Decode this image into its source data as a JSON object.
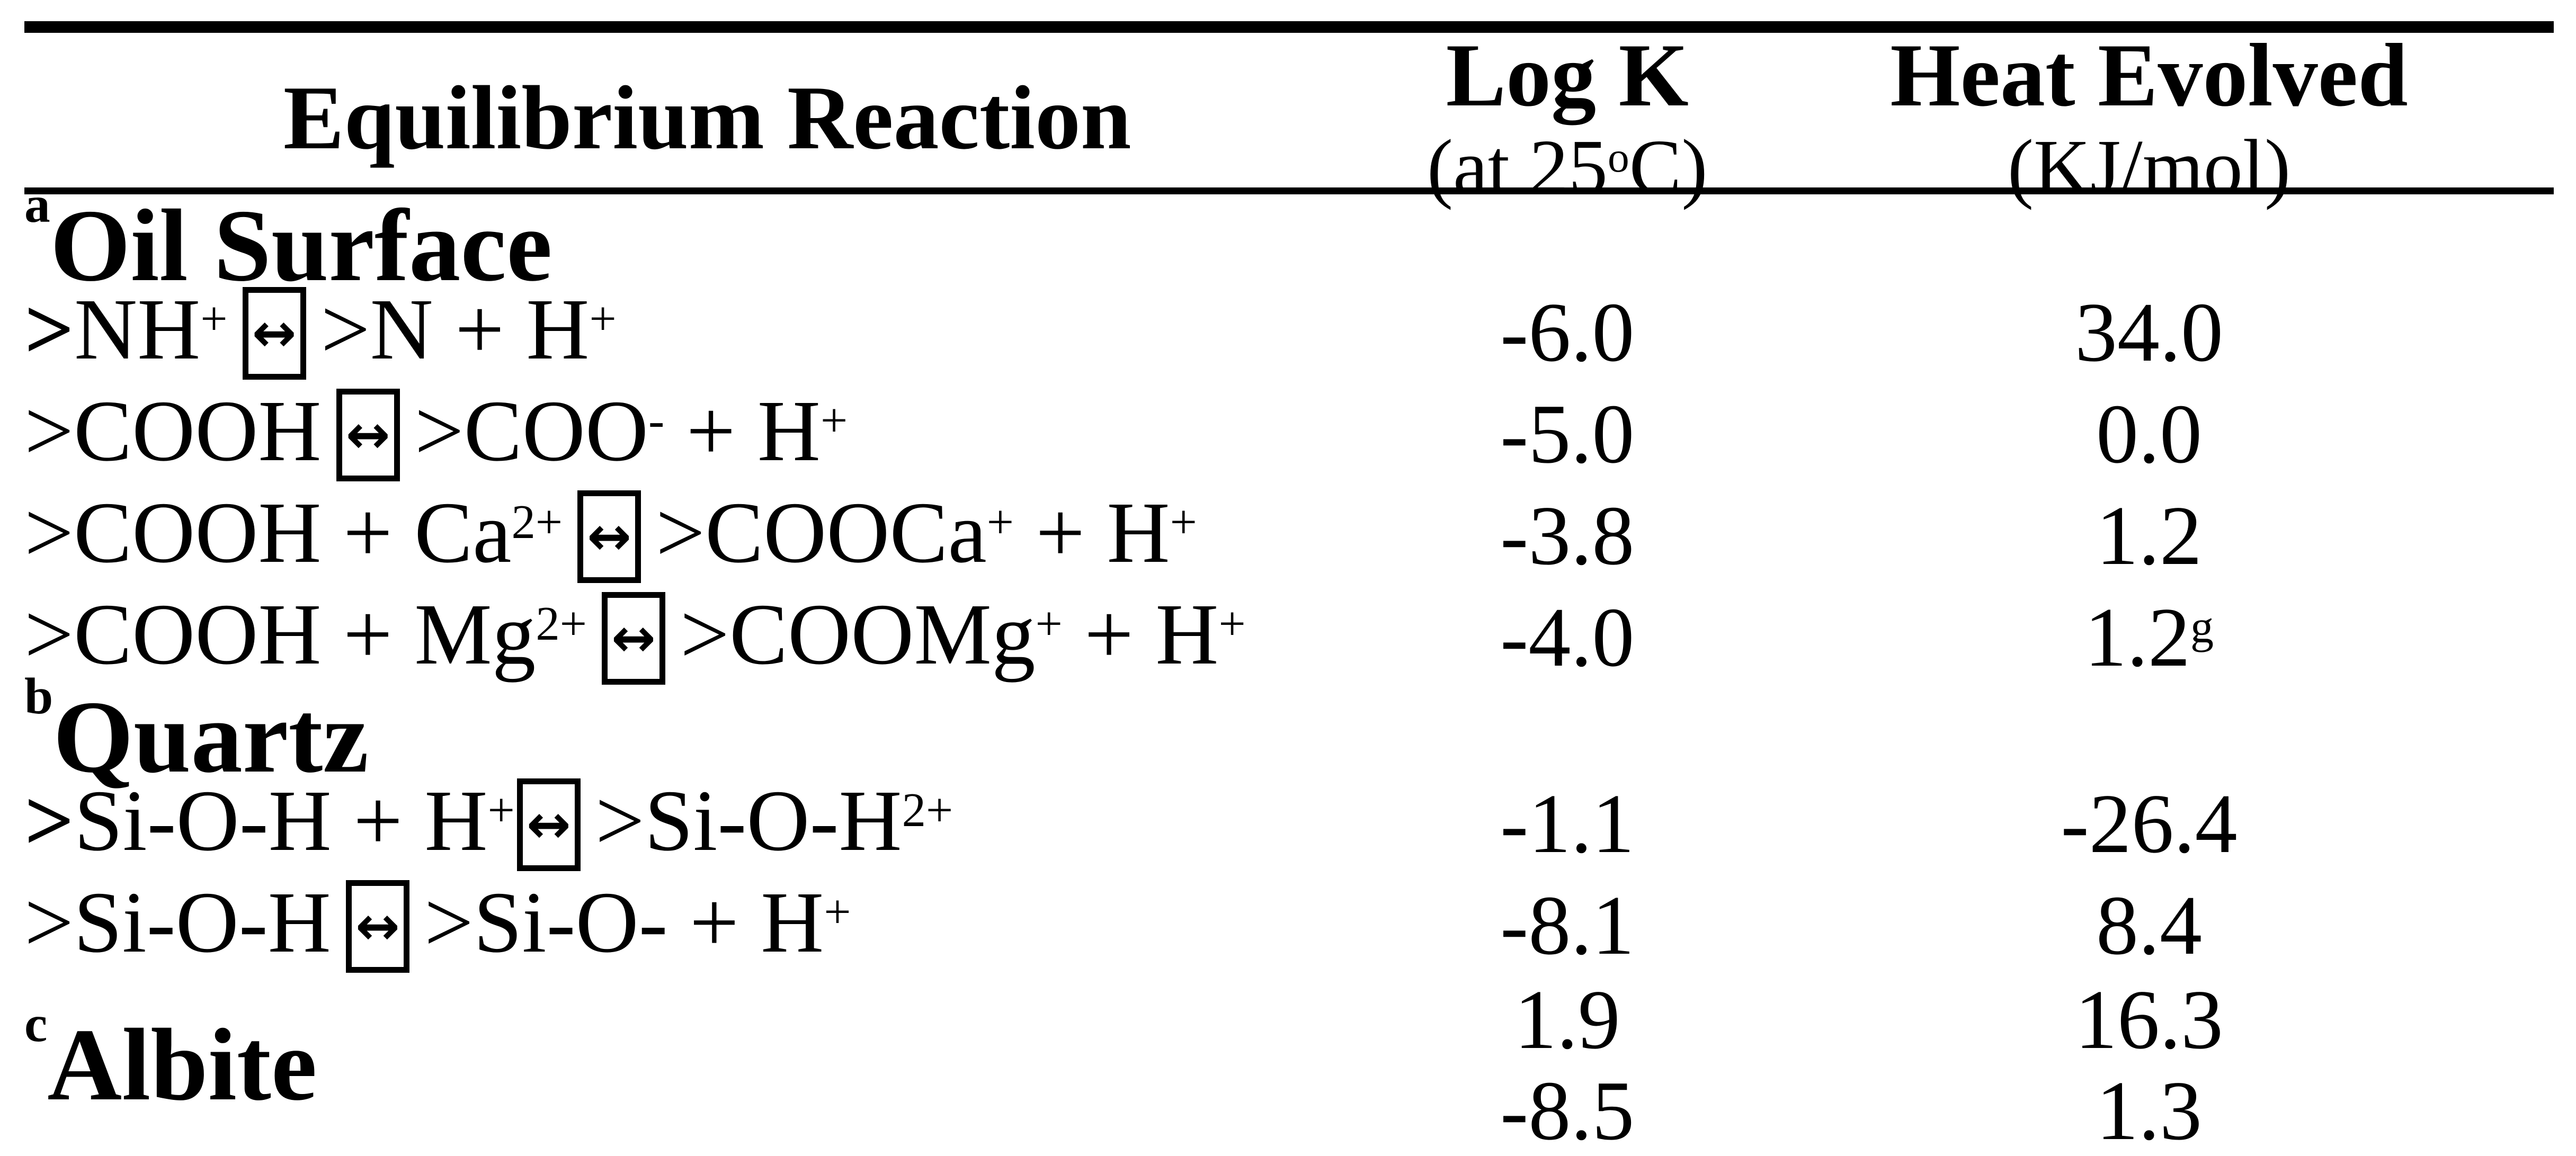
{
  "page": {
    "background": "#ffffff",
    "text_color": "#000000"
  },
  "icons": {
    "equilibrium_arrow": "↔"
  },
  "header": {
    "reaction_label": "Equilibrium Reaction",
    "logk_title": "Log K",
    "logk_subtitle_pre": "(at 25",
    "logk_subtitle_sup": "o",
    "logk_subtitle_post": "C)",
    "heat_title": "Heat Evolved",
    "heat_subtitle": "(KJ/mol)"
  },
  "rows": [
    {
      "kind": "section",
      "footnote": "a",
      "label": "Oil Surface"
    },
    {
      "kind": "reaction",
      "logk": "-6.0",
      "heat": "34.0",
      "tokens": [
        [
          "b",
          ">"
        ],
        [
          "t",
          "NH"
        ],
        [
          "s",
          "+"
        ],
        [
          "box"
        ],
        [
          "t",
          ">N + H"
        ],
        [
          "s",
          "+"
        ]
      ]
    },
    {
      "kind": "reaction",
      "logk": "-5.0",
      "heat": "0.0",
      "tokens": [
        [
          "t",
          ">COOH"
        ],
        [
          "box"
        ],
        [
          "t",
          ">COO"
        ],
        [
          "s",
          "-"
        ],
        [
          "t",
          " + H"
        ],
        [
          "s",
          "+"
        ]
      ]
    },
    {
      "kind": "reaction",
      "logk": "-3.8",
      "heat": "1.2",
      "tokens": [
        [
          "t",
          ">COOH + Ca"
        ],
        [
          "s",
          "2+"
        ],
        [
          "box"
        ],
        [
          "t",
          ">COOCa"
        ],
        [
          "s",
          "+"
        ],
        [
          "t",
          " + H"
        ],
        [
          "s",
          "+"
        ]
      ]
    },
    {
      "kind": "reaction",
      "logk": "-4.0",
      "heat": "1.2",
      "heat_sup": "g",
      "tokens": [
        [
          "t",
          ">COOH + Mg"
        ],
        [
          "s",
          "2+"
        ],
        [
          "box"
        ],
        [
          "t",
          ">COOMg"
        ],
        [
          "s",
          "+"
        ],
        [
          "t",
          " + H"
        ],
        [
          "s",
          "+"
        ]
      ]
    },
    {
      "kind": "section",
      "footnote": "b",
      "label": "Quartz"
    },
    {
      "kind": "reaction",
      "logk": "-1.1",
      "heat": "-26.4",
      "tokens": [
        [
          "b",
          ">"
        ],
        [
          "t",
          "Si-O-H + H"
        ],
        [
          "s",
          "+"
        ],
        [
          "boxtight"
        ],
        [
          "t",
          ">Si-O-H"
        ],
        [
          "s",
          "2+"
        ]
      ]
    },
    {
      "kind": "reaction",
      "logk": "-8.1",
      "heat": "8.4",
      "tokens": [
        [
          "t",
          ">Si-O-H"
        ],
        [
          "box"
        ],
        [
          "t",
          ">Si-O- + H"
        ],
        [
          "s",
          "+"
        ]
      ]
    },
    {
      "kind": "group",
      "footnote": "c",
      "label": "Albite",
      "values": [
        {
          "logk": "1.9",
          "heat": "16.3"
        },
        {
          "logk": "-8.5",
          "heat": "1.3"
        }
      ]
    }
  ]
}
